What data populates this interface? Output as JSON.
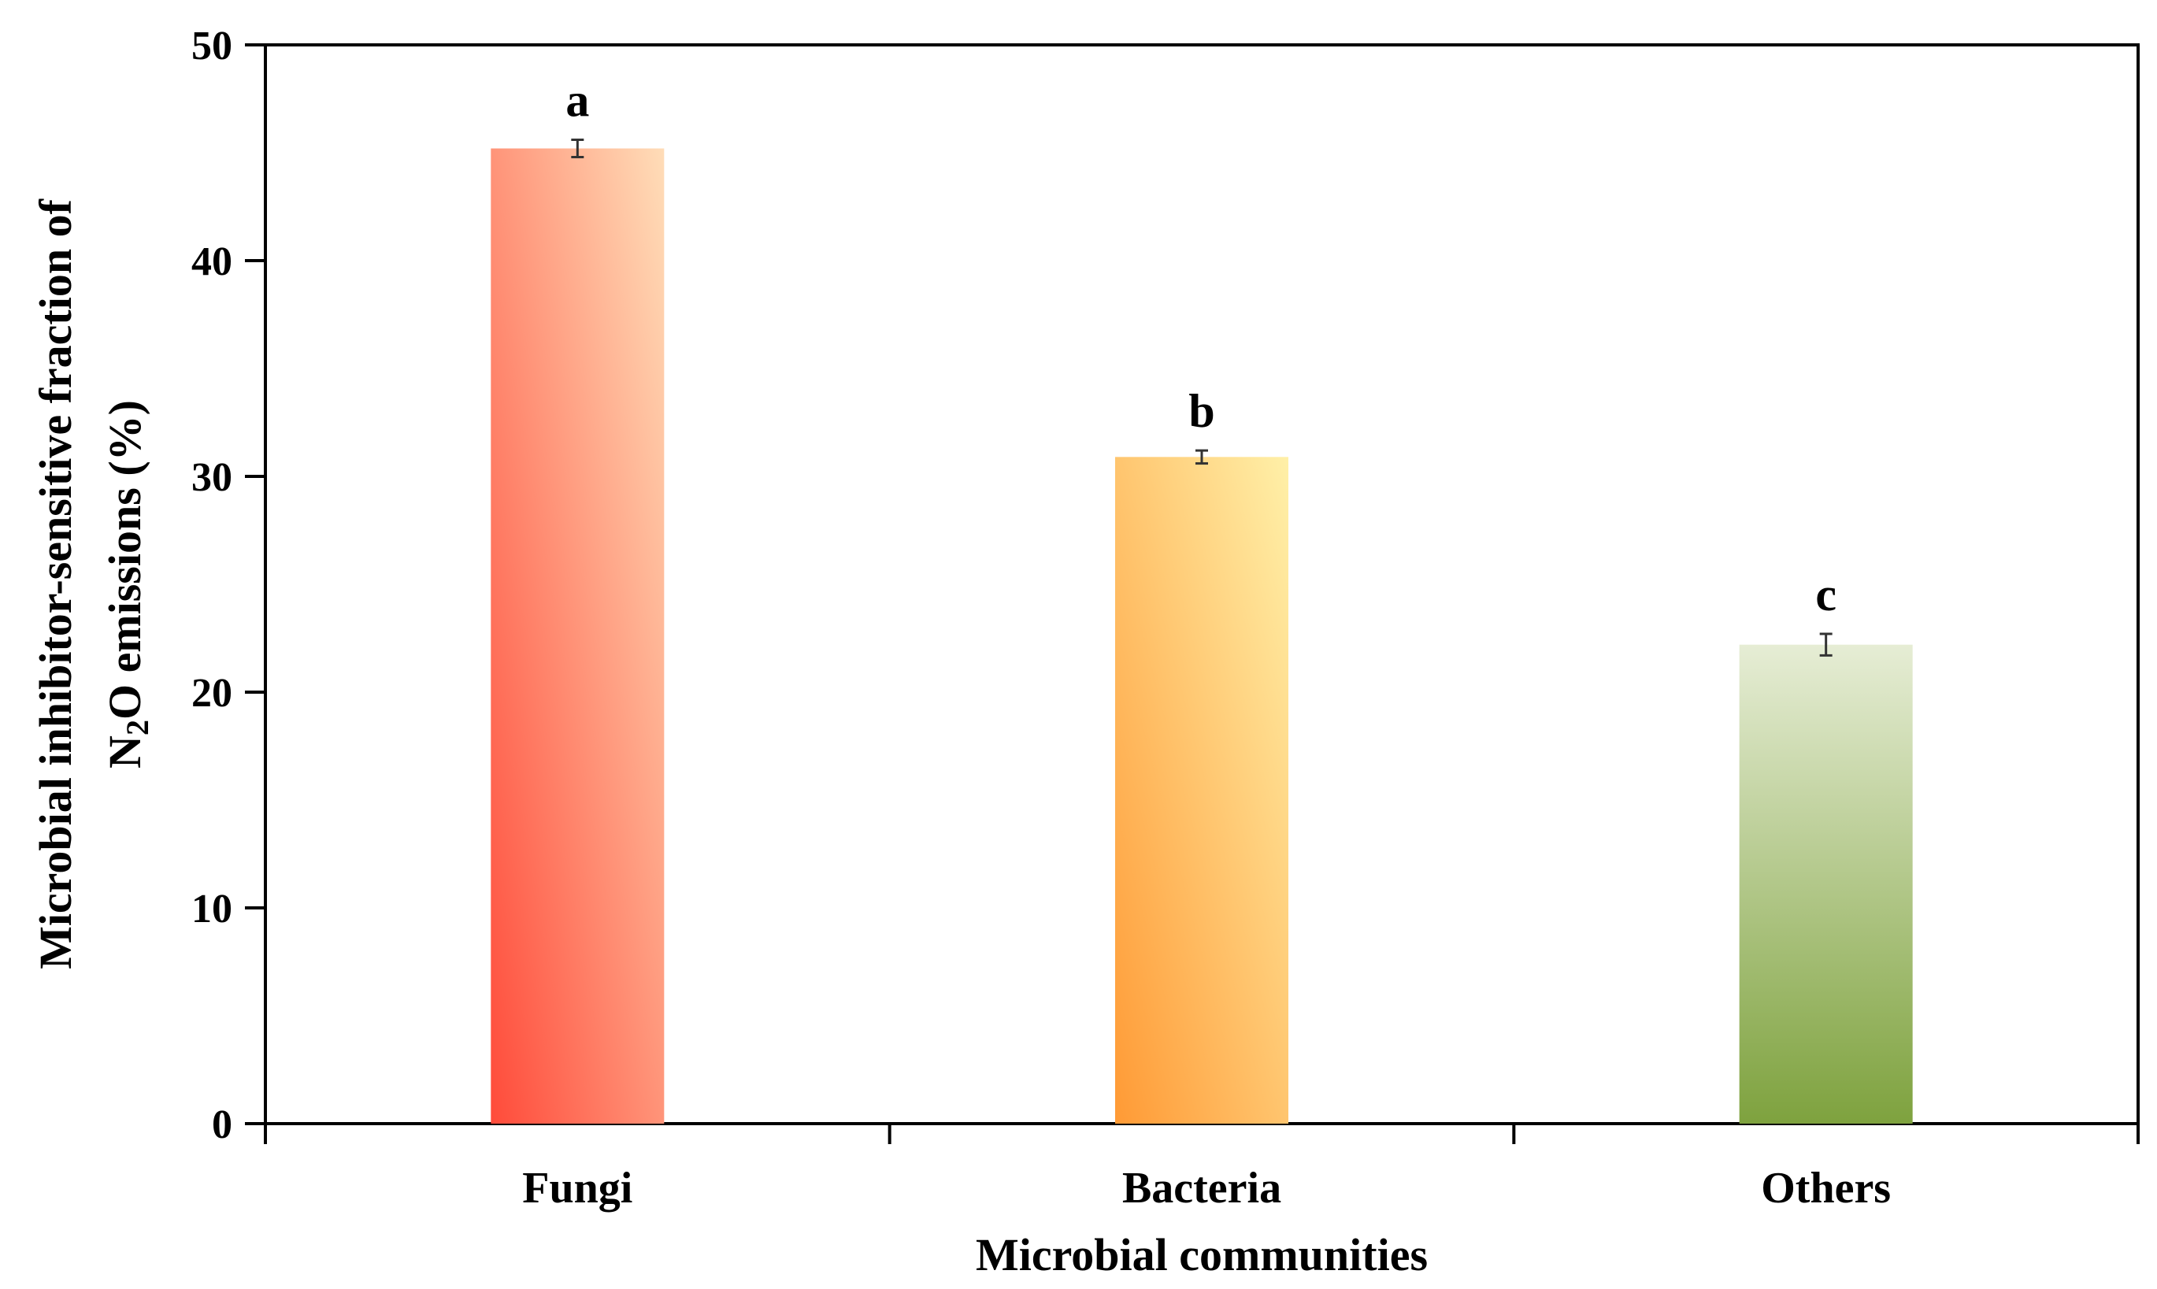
{
  "chart_data": {
    "type": "bar",
    "title": "",
    "xlabel": "Microbial communities",
    "ylabel_line1": "Microbial inhibitor-sensitive fraction of",
    "ylabel_line2_prefix": "N",
    "ylabel_line2_subscript": "2",
    "ylabel_line2_suffix": "O emissions (%)",
    "categories": [
      "Fungi",
      "Bacteria",
      "Others"
    ],
    "values": [
      45.2,
      30.9,
      22.2
    ],
    "errors": [
      0.4,
      0.3,
      0.5
    ],
    "significance": [
      "a",
      "b",
      "c"
    ],
    "ylim": [
      0,
      50
    ],
    "yticks": [
      0,
      10,
      20,
      30,
      40,
      50
    ],
    "grid": false,
    "colors": {
      "Fungi": [
        "#FF4B3A",
        "#FFDDB8"
      ],
      "Bacteria": [
        "#FF9A35",
        "#FFF0A8"
      ],
      "Others": [
        "#7EA23E",
        "#E6EDD5"
      ]
    }
  }
}
